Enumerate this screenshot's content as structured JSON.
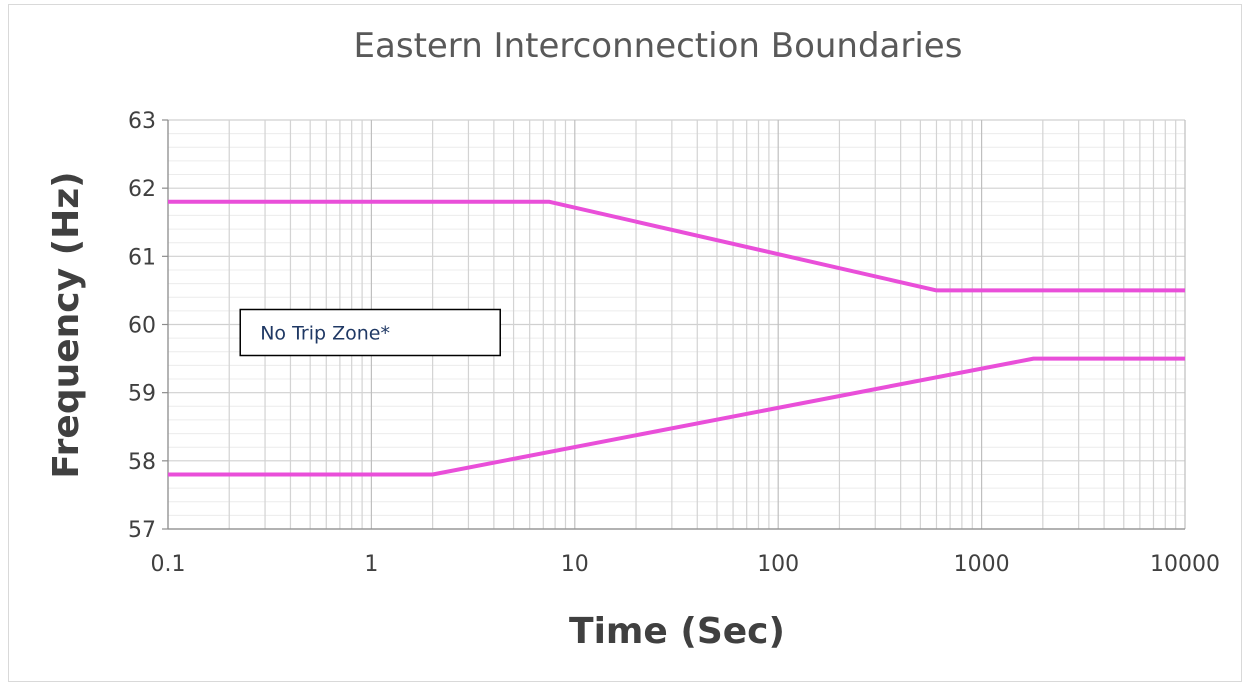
{
  "chart_data": {
    "type": "line",
    "title": "Eastern Interconnection Boundaries",
    "xlabel": "Time (Sec)",
    "ylabel": "Frequency (Hz)",
    "x_scale": "log",
    "xlim": [
      0.1,
      10000
    ],
    "ylim": [
      57,
      63
    ],
    "x_ticks": [
      0.1,
      1,
      10,
      100,
      1000,
      10000
    ],
    "x_tick_labels": [
      "0.1",
      "1",
      "10",
      "100",
      "1000",
      "10000"
    ],
    "y_ticks": [
      57,
      58,
      59,
      60,
      61,
      62,
      63
    ],
    "y_tick_labels": [
      "57",
      "58",
      "59",
      "60",
      "61",
      "62",
      "63"
    ],
    "grid": true,
    "line_color": "#e94fd9",
    "series": [
      {
        "x": [
          0.1,
          7.5,
          600,
          10000
        ],
        "y": [
          61.8,
          61.8,
          60.5,
          60.5
        ]
      },
      {
        "x": [
          0.1,
          2,
          1800,
          10000
        ],
        "y": [
          57.8,
          57.8,
          59.5,
          59.5
        ]
      }
    ],
    "annotations": [
      {
        "text": "No Trip Zone*",
        "x": 0.2,
        "y": 60
      }
    ]
  }
}
